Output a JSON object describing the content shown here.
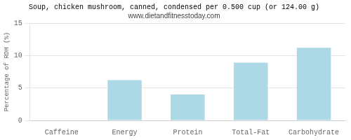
{
  "chart_data": {
    "type": "bar",
    "title": "Soup, chicken mushroom, canned, condensed per 0.500 cup (or 124.00 g)",
    "subtitle": "www.dietandfitnesstoday.com",
    "categories": [
      "Caffeine",
      "Energy",
      "Protein",
      "Total-Fat",
      "Carbohydrate"
    ],
    "values": [
      0,
      6.2,
      4.0,
      8.9,
      11.2
    ],
    "color": "#add8e6",
    "ylabel": "Percentage of RDH (%)",
    "ylim": [
      0,
      15
    ],
    "yticks": [
      0,
      5,
      10,
      15
    ],
    "grid": true
  }
}
